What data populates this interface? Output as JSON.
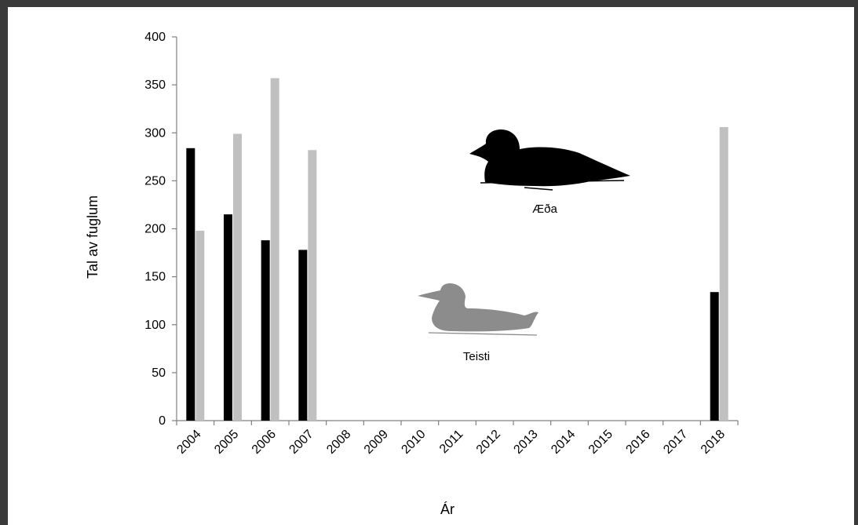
{
  "chart_data": {
    "type": "bar",
    "categories": [
      "2004",
      "2005",
      "2006",
      "2007",
      "2008",
      "2009",
      "2010",
      "2011",
      "2012",
      "2013",
      "2014",
      "2015",
      "2016",
      "2017",
      "2018"
    ],
    "series": [
      {
        "color": "#000000",
        "values": [
          284,
          215,
          188,
          178,
          0,
          0,
          0,
          0,
          0,
          0,
          0,
          0,
          0,
          0,
          134
        ]
      },
      {
        "color": "#c0c0c0",
        "values": [
          198,
          299,
          357,
          282,
          0,
          0,
          0,
          0,
          0,
          0,
          0,
          0,
          0,
          0,
          306
        ]
      }
    ],
    "ylabel": "Tal av fuglum",
    "xlabel": "Ár",
    "ylim": [
      0,
      400
    ],
    "yticks": [
      0,
      50,
      100,
      150,
      200,
      250,
      300,
      350,
      400
    ],
    "grid": false,
    "annotations": [
      {
        "text": "Æða",
        "icon": "eider-duck-silhouette-icon",
        "color": "#000000"
      },
      {
        "text": "Teisti",
        "icon": "black-guillemot-silhouette-icon",
        "color": "#8c8c8c"
      }
    ]
  }
}
